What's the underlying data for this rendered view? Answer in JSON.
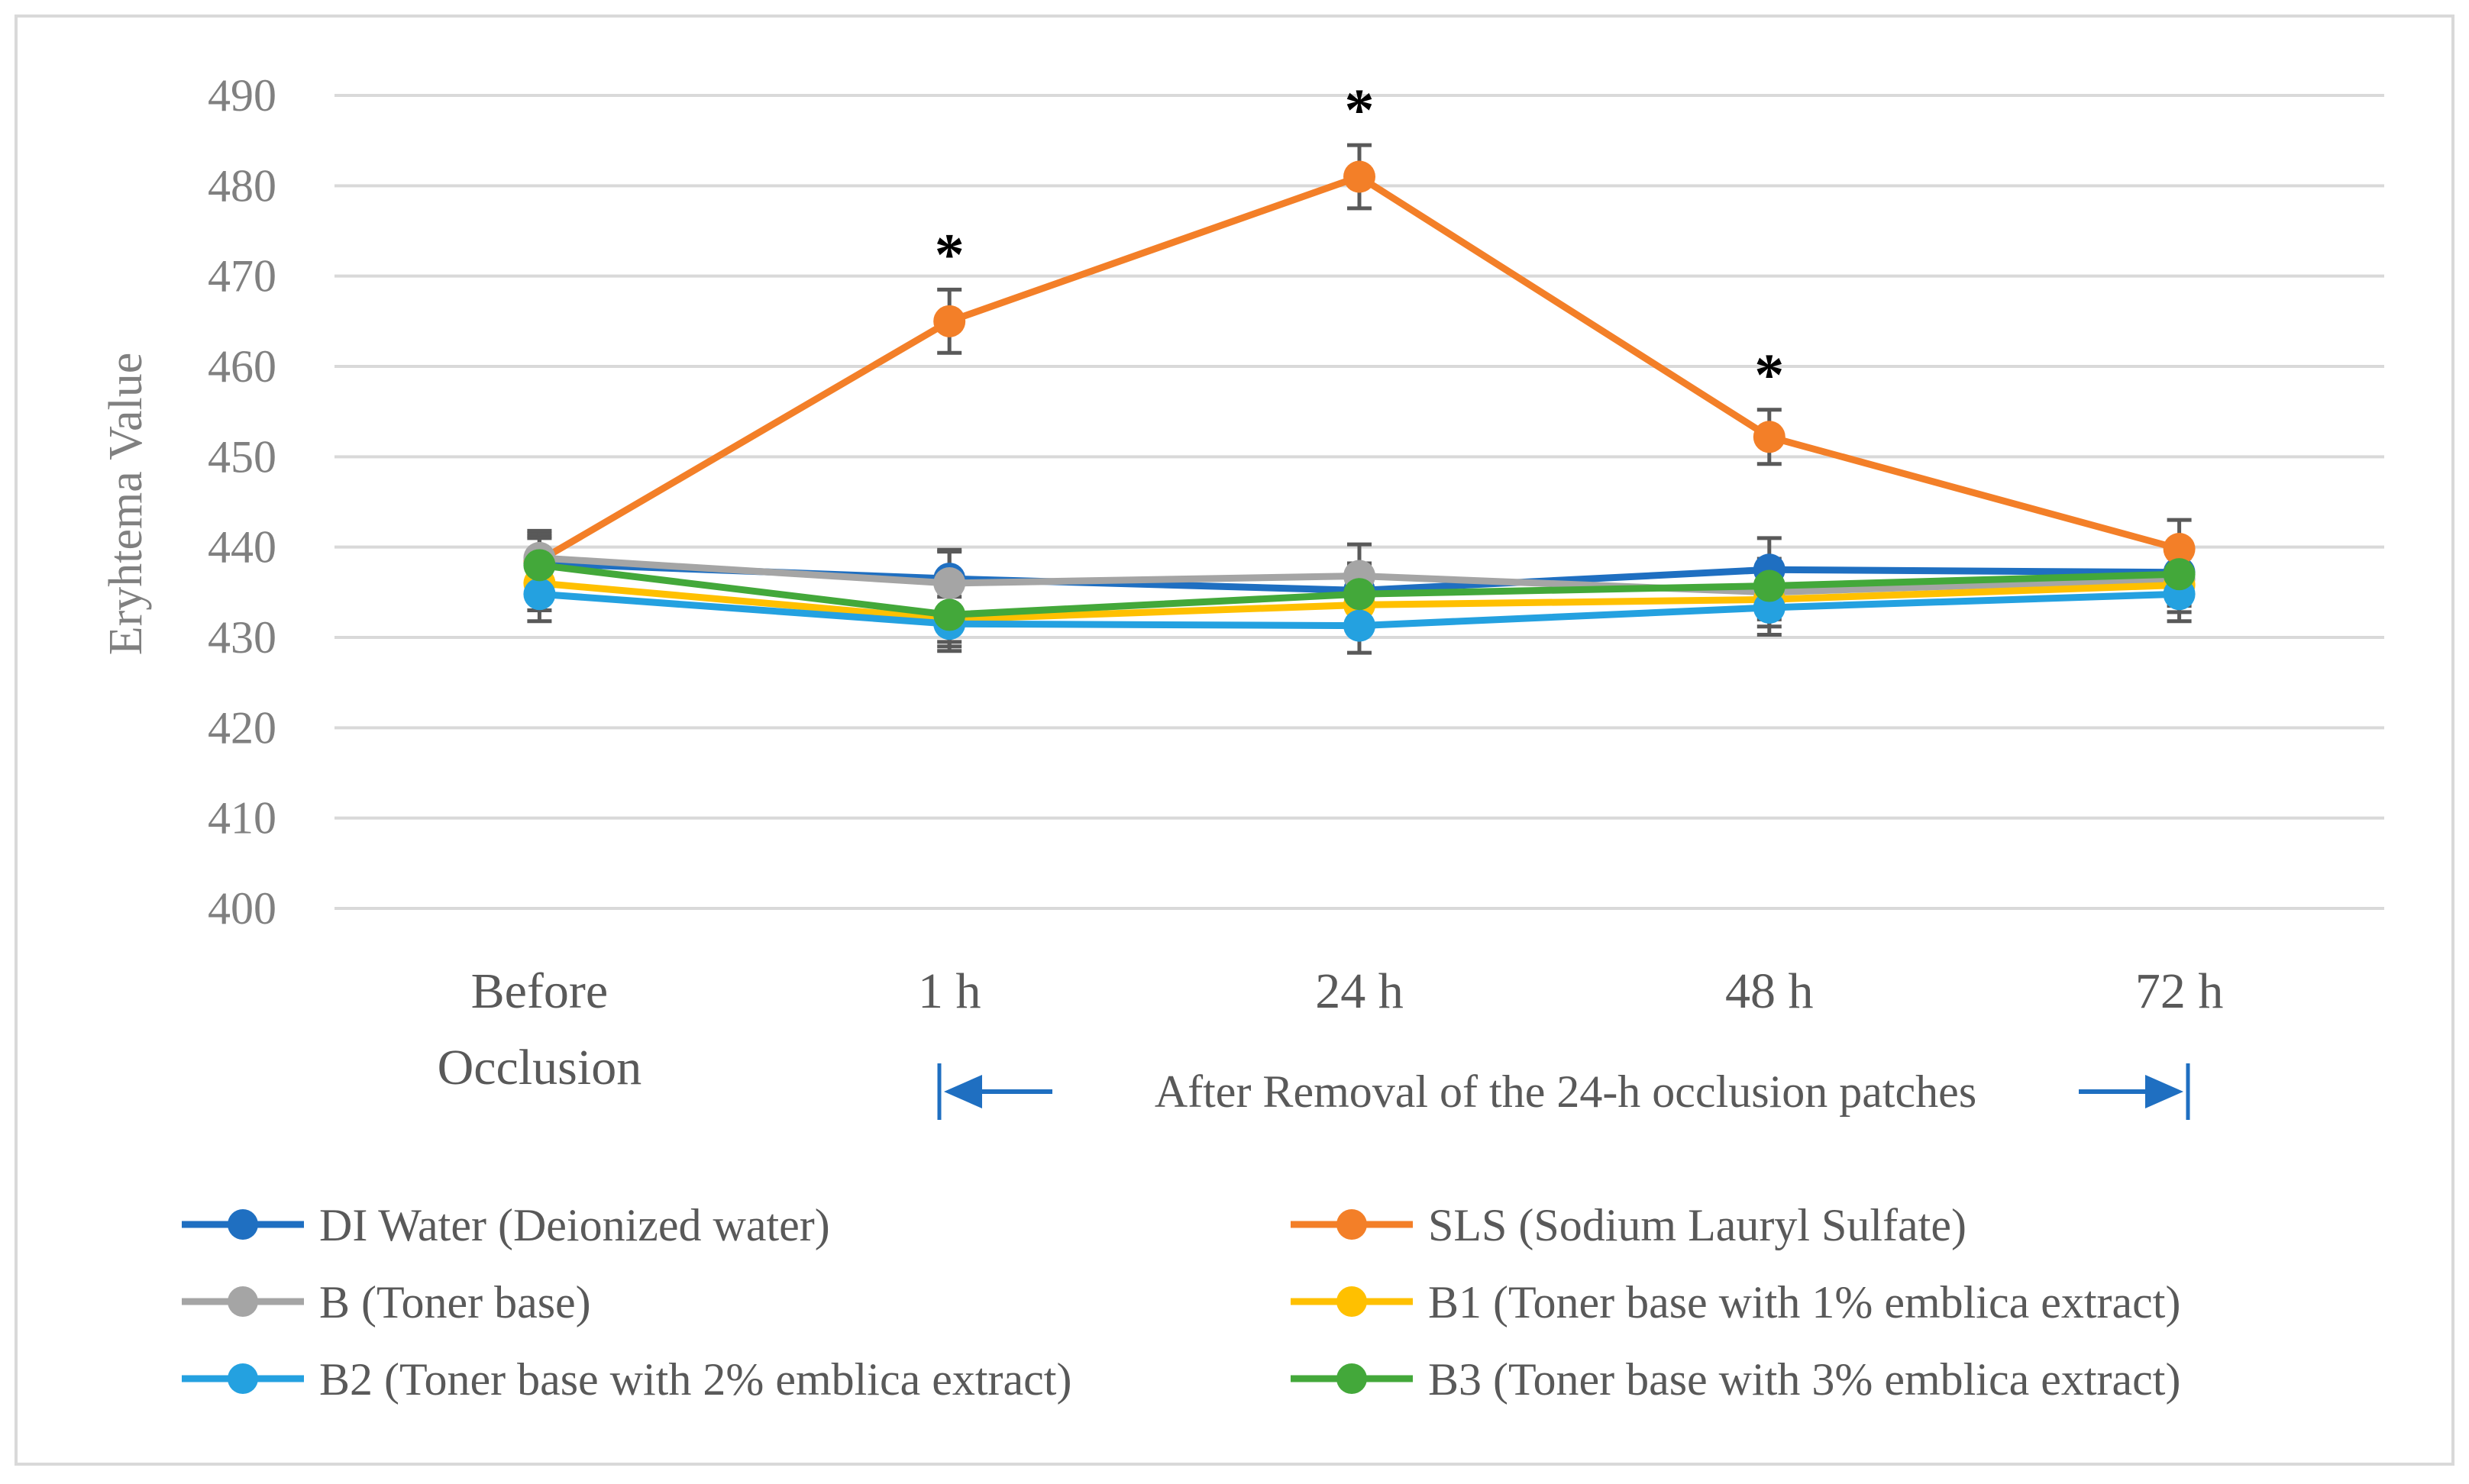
{
  "chart_data": {
    "type": "line",
    "title": "",
    "xlabel": "",
    "ylabel": "Eryhtema Value",
    "ylim": [
      400,
      490
    ],
    "ytick_step": 10,
    "grid": true,
    "legend_position": "bottom",
    "categories": [
      "Before Occlusion",
      "1 h",
      "24 h",
      "48 h",
      "72 h"
    ],
    "category_lines": [
      [
        "Before",
        "Occlusion"
      ],
      [
        "1 h"
      ],
      [
        "24 h"
      ],
      [
        "48 h"
      ],
      [
        "72 h"
      ]
    ],
    "annotation": "After Removal of the 24-h occlusion patches",
    "significance_marker": "*",
    "series": [
      {
        "name": "DI Water (Deionized water)",
        "color": "#1F6FC1",
        "values": [
          438.2,
          436.5,
          435.2,
          437.5,
          437.2
        ],
        "errors": [
          3.0,
          3.2,
          3.0,
          3.5,
          3.0
        ],
        "significant": [
          false,
          false,
          false,
          false,
          false
        ]
      },
      {
        "name": "SLS (Sodium Lauryl Sulfate)",
        "color": "#F37F28",
        "values": [
          438.5,
          465.0,
          481.0,
          452.2,
          439.8
        ],
        "errors": [
          3.0,
          3.5,
          3.5,
          3.0,
          3.2
        ],
        "significant": [
          false,
          true,
          true,
          true,
          false
        ]
      },
      {
        "name": "B (Toner base)",
        "color": "#A5A5A5",
        "values": [
          438.8,
          436.0,
          436.8,
          435.0,
          436.5
        ],
        "errors": [
          3.0,
          3.5,
          3.5,
          3.0,
          3.0
        ],
        "significant": [
          false,
          false,
          false,
          false,
          false
        ]
      },
      {
        "name": "B1 (Toner base with 1% emblica extract)",
        "color": "#FFC000",
        "values": [
          436.0,
          432.0,
          433.6,
          434.2,
          435.8
        ],
        "errors": [
          3.0,
          3.0,
          3.0,
          3.0,
          3.0
        ],
        "significant": [
          false,
          false,
          false,
          false,
          false
        ]
      },
      {
        "name": "B2 (Toner base with 2% emblica extract)",
        "color": "#24A1E0",
        "values": [
          434.8,
          431.5,
          431.3,
          433.3,
          434.8
        ],
        "errors": [
          3.0,
          3.0,
          3.0,
          3.0,
          3.0
        ],
        "significant": [
          false,
          false,
          false,
          false,
          false
        ]
      },
      {
        "name": "B3 (Toner base with 3% emblica extract)",
        "color": "#43A83A",
        "values": [
          438.0,
          432.5,
          434.8,
          435.7,
          437.0
        ],
        "errors": [
          3.0,
          3.0,
          3.0,
          3.0,
          3.0
        ],
        "significant": [
          false,
          false,
          false,
          false,
          false
        ]
      }
    ]
  }
}
